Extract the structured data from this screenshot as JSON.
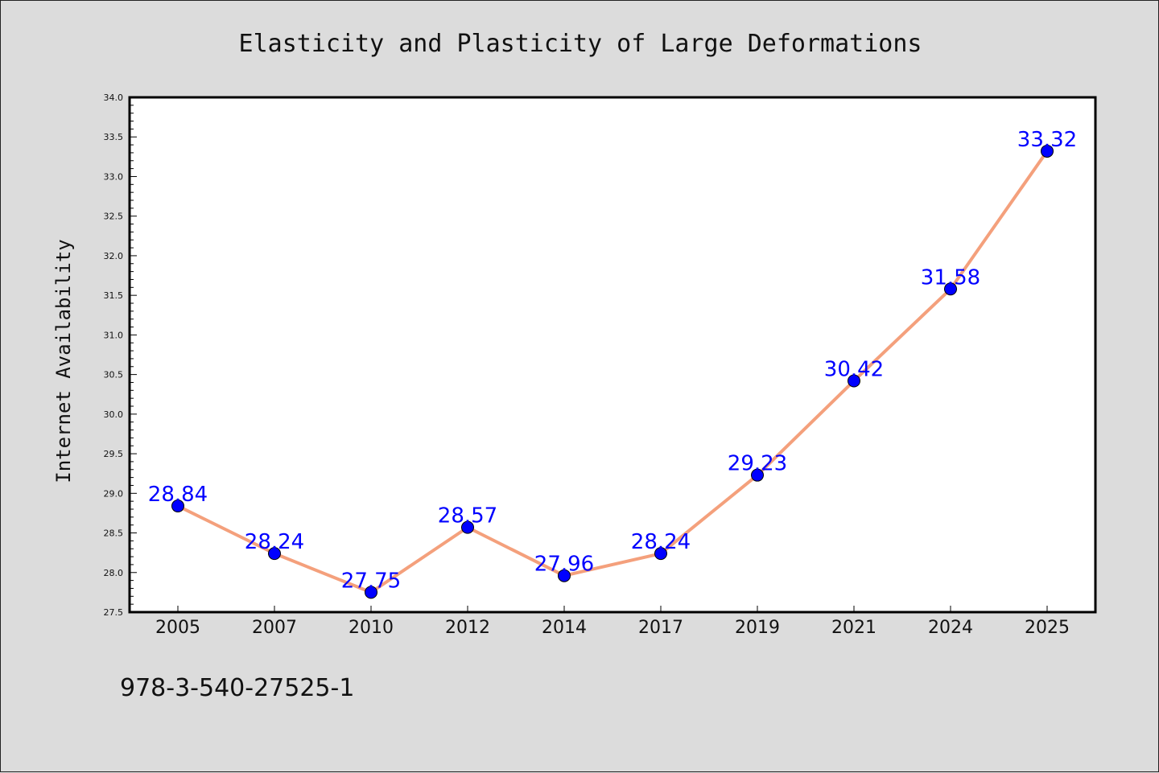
{
  "chart_data": {
    "type": "line",
    "title": "Elasticity and Plasticity of Large Deformations",
    "xlabel": "",
    "ylabel": "Internet Availability",
    "categories": [
      "2005",
      "2007",
      "2010",
      "2012",
      "2014",
      "2017",
      "2019",
      "2021",
      "2024",
      "2025"
    ],
    "series": [
      {
        "values": [
          28.84,
          28.24,
          27.75,
          28.57,
          27.96,
          28.24,
          29.23,
          30.42,
          31.58,
          33.32
        ],
        "data_labels": [
          "28.84",
          "28.24",
          "27.75",
          "28.57",
          "27.96",
          "28.24",
          "29.23",
          "30.42",
          "31.58",
          "33.32"
        ]
      }
    ],
    "ylim": [
      27.5,
      34.0
    ],
    "yticks": [
      "27.5",
      "28.0",
      "28.5",
      "29.0",
      "29.5",
      "30.0",
      "30.5",
      "31.0",
      "31.5",
      "32.0",
      "32.5",
      "33.0",
      "33.5",
      "34.0"
    ],
    "grid": false,
    "colors": {
      "line": "#f4a07c",
      "marker": "#0000ff",
      "label": "#0000ff",
      "background": "#dcdcdc",
      "plot_background": "#ffffff"
    },
    "annotation": "978-3-540-27525-1"
  }
}
